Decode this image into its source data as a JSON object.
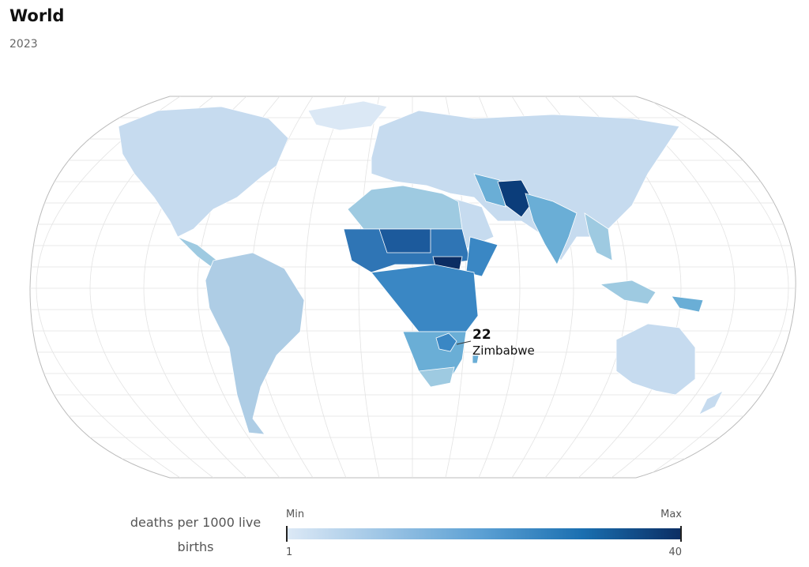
{
  "header": {
    "title": "World",
    "subtitle": "2023"
  },
  "callout": {
    "value": 22,
    "label": "Zimbabwe"
  },
  "legend": {
    "title": "deaths per 1000 live births",
    "min_label": "Min",
    "max_label": "Max",
    "min": 1,
    "max": 40
  }
}
